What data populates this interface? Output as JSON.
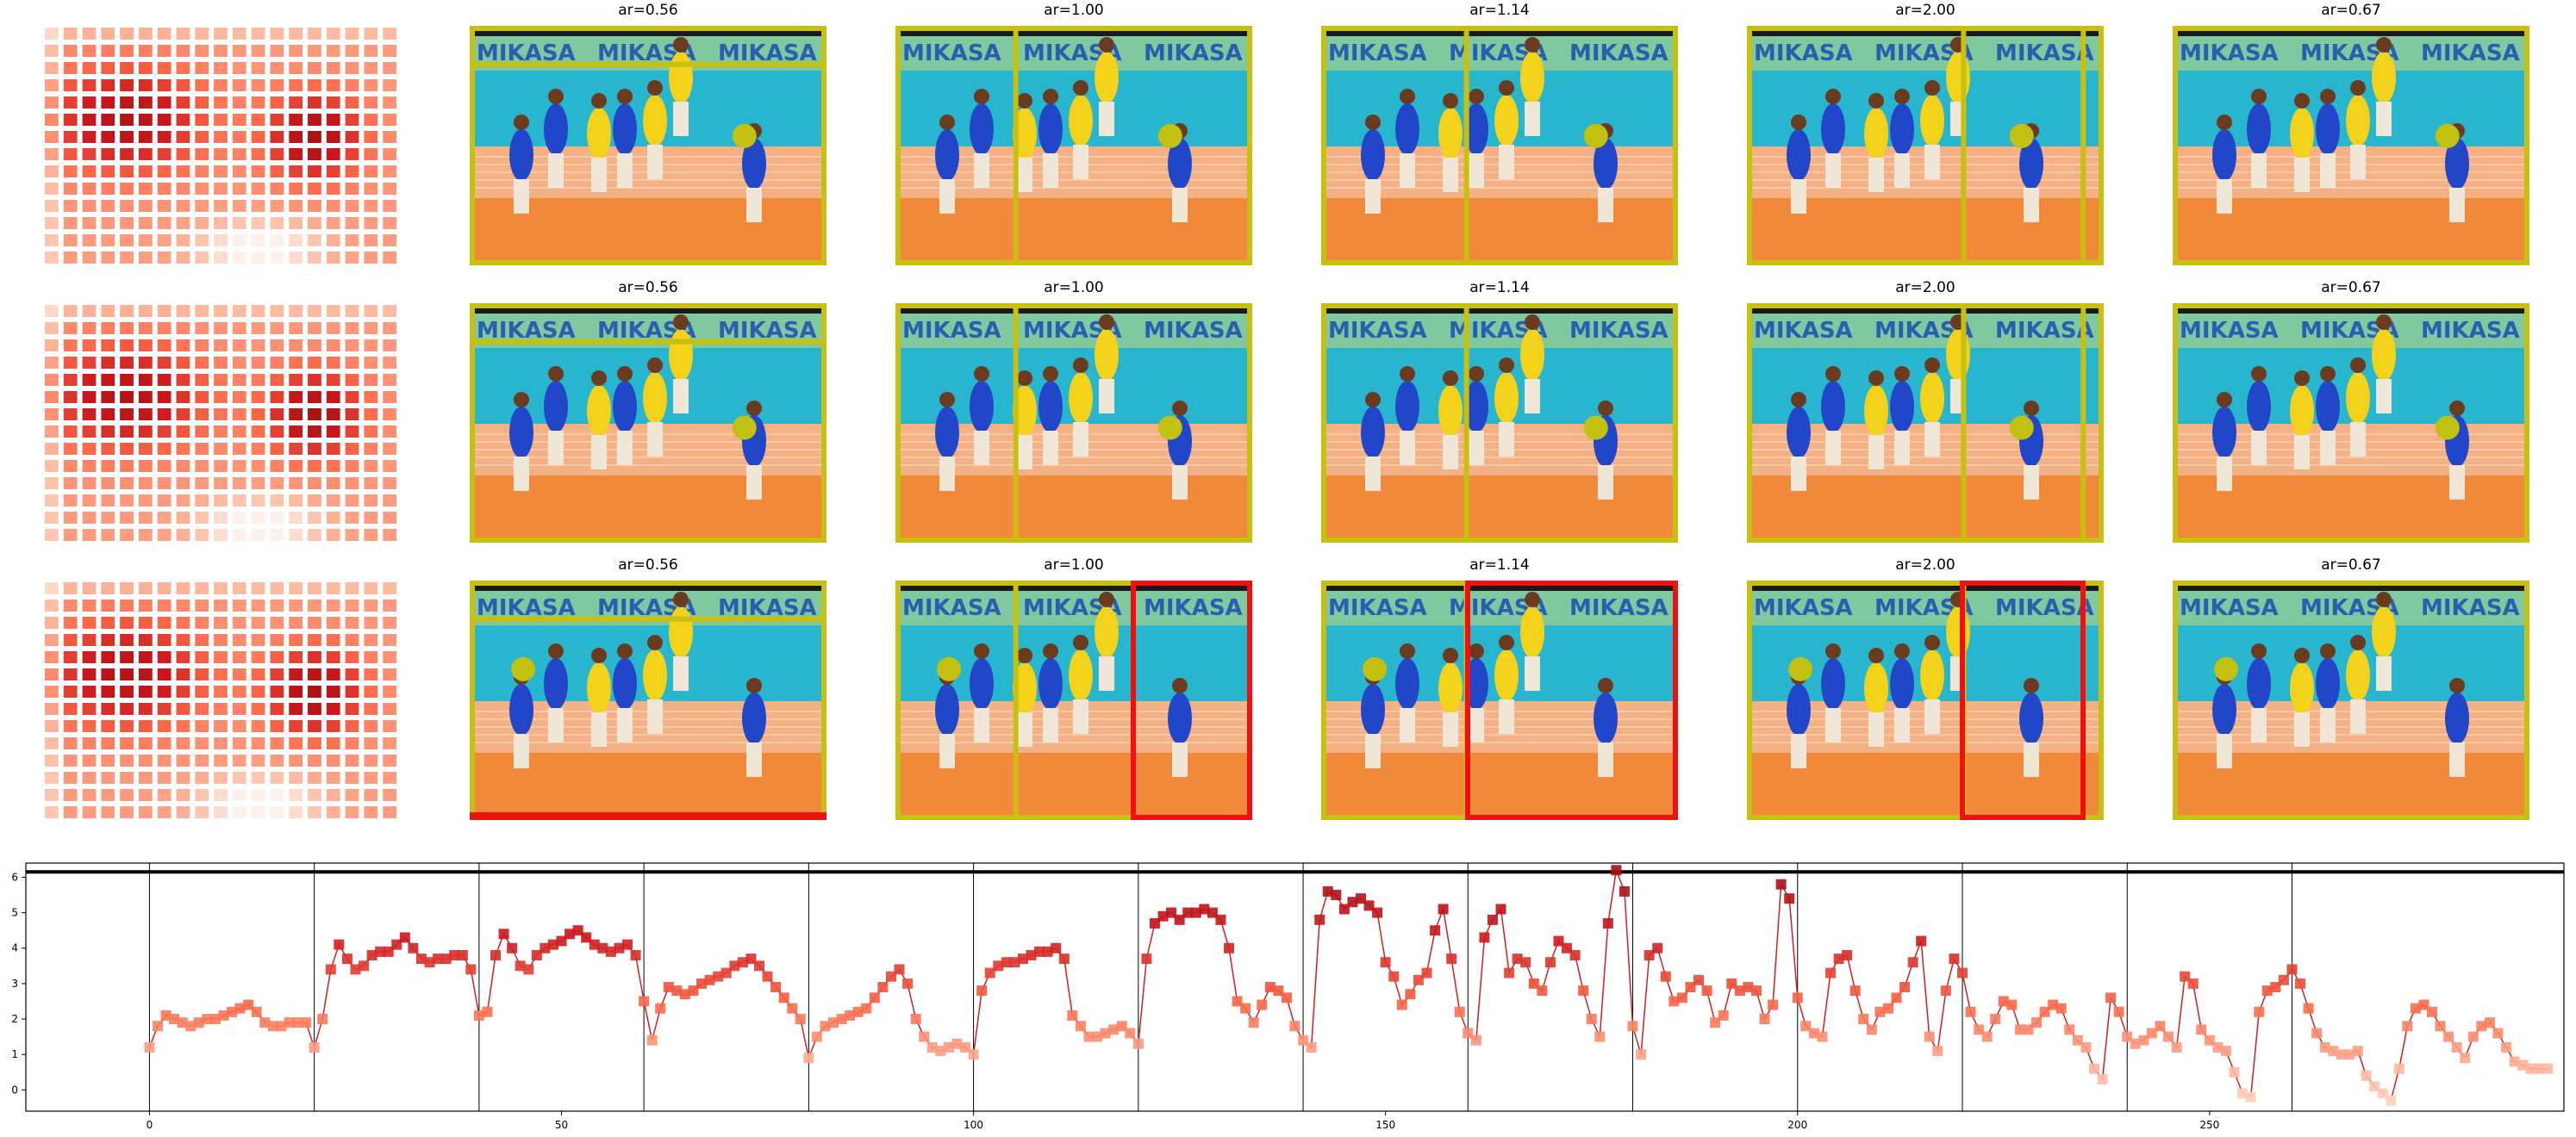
{
  "panel_titles": [
    "ar=0.56",
    "ar=1.00",
    "ar=1.14",
    "ar=2.00",
    "ar=0.67"
  ],
  "rows": [
    {
      "point_panel_index": [
        0,
        1,
        2,
        3,
        4
      ],
      "red_frames": []
    },
    {
      "point_panel_index": [
        0,
        1,
        2,
        3,
        4
      ],
      "red_frames": []
    },
    {
      "point_panel_index": [
        0,
        1,
        2,
        3,
        4
      ],
      "red_frames": [
        0,
        1,
        2,
        3
      ]
    }
  ],
  "banner_text": "MIKASA",
  "colors": {
    "frame_yellow": "#c8c010",
    "frame_red": "#ee1111",
    "point_yellow": "#c2c010",
    "line_red": "#cc2222",
    "marker_dark": "#a50f15",
    "marker_light": "#fcbba1"
  },
  "chart_data": {
    "type": "line",
    "x_start": 0,
    "xlim": [
      -15,
      293
    ],
    "ylim": [
      -0.6,
      6.4
    ],
    "xticks": [
      0,
      50,
      100,
      150,
      200,
      250
    ],
    "yticks": [
      0,
      1,
      2,
      3,
      4,
      5,
      6
    ],
    "group_separators": [
      0,
      20,
      40,
      60,
      80,
      100,
      120,
      140,
      160,
      180,
      200,
      220,
      240,
      260
    ],
    "hline": 6.15,
    "values": [
      1.2,
      1.8,
      2.1,
      2.0,
      1.9,
      1.8,
      1.9,
      2.0,
      2.0,
      2.1,
      2.2,
      2.3,
      2.4,
      2.2,
      1.9,
      1.8,
      1.8,
      1.9,
      1.9,
      1.9,
      1.2,
      2.0,
      3.4,
      4.1,
      3.7,
      3.4,
      3.5,
      3.8,
      3.9,
      3.9,
      4.1,
      4.3,
      4.0,
      3.7,
      3.6,
      3.7,
      3.7,
      3.8,
      3.8,
      3.4,
      2.1,
      2.2,
      3.8,
      4.4,
      4.0,
      3.5,
      3.4,
      3.8,
      4.0,
      4.1,
      4.2,
      4.4,
      4.5,
      4.3,
      4.1,
      4.0,
      3.9,
      4.0,
      4.1,
      3.8,
      2.5,
      1.4,
      2.3,
      2.9,
      2.8,
      2.7,
      2.8,
      3.0,
      3.1,
      3.2,
      3.3,
      3.5,
      3.6,
      3.7,
      3.5,
      3.2,
      2.9,
      2.6,
      2.3,
      2.0,
      0.9,
      1.5,
      1.8,
      1.9,
      2.0,
      2.1,
      2.2,
      2.3,
      2.6,
      2.9,
      3.2,
      3.4,
      3.0,
      2.0,
      1.5,
      1.2,
      1.1,
      1.2,
      1.3,
      1.2,
      1.0,
      2.8,
      3.3,
      3.5,
      3.6,
      3.6,
      3.7,
      3.8,
      3.9,
      3.9,
      4.0,
      3.7,
      2.1,
      1.8,
      1.5,
      1.5,
      1.6,
      1.7,
      1.8,
      1.6,
      1.3,
      3.7,
      4.7,
      4.9,
      5.0,
      4.8,
      5.0,
      5.0,
      5.1,
      5.0,
      4.8,
      4.0,
      2.5,
      2.3,
      1.9,
      2.4,
      2.9,
      2.8,
      2.6,
      1.8,
      1.4,
      1.2,
      4.8,
      5.6,
      5.5,
      5.1,
      5.3,
      5.4,
      5.2,
      5.0,
      3.6,
      3.2,
      2.4,
      2.7,
      3.1,
      3.3,
      4.5,
      5.1,
      3.7,
      2.2,
      1.6,
      1.4,
      4.3,
      4.8,
      5.1,
      3.3,
      3.7,
      3.6,
      3.0,
      2.8,
      3.6,
      4.2,
      4.0,
      3.8,
      2.8,
      2.0,
      1.5,
      4.7,
      6.2,
      5.6,
      1.8,
      1.0,
      3.8,
      4.0,
      3.2,
      2.5,
      2.6,
      2.9,
      3.1,
      2.8,
      1.9,
      2.1,
      3.0,
      2.8,
      2.9,
      2.8,
      2.0,
      2.4,
      5.8,
      5.4,
      2.6,
      1.8,
      1.6,
      1.5,
      3.3,
      3.7,
      3.8,
      2.8,
      2.0,
      1.7,
      2.2,
      2.3,
      2.6,
      2.9,
      3.6,
      4.2,
      1.5,
      1.1,
      2.8,
      3.7,
      3.3,
      2.2,
      1.7,
      1.5,
      2.0,
      2.5,
      2.4,
      1.7,
      1.7,
      1.9,
      2.2,
      2.4,
      2.3,
      1.7,
      1.4,
      1.2,
      0.6,
      0.3,
      2.6,
      2.2,
      1.5,
      1.3,
      1.4,
      1.6,
      1.8,
      1.5,
      1.2,
      3.2,
      3.0,
      1.7,
      1.4,
      1.2,
      1.1,
      0.5,
      -0.1,
      -0.2,
      2.2,
      2.8,
      2.9,
      3.1,
      3.4,
      3.0,
      2.3,
      1.6,
      1.2,
      1.1,
      1.0,
      1.0,
      1.1,
      0.4,
      0.1,
      -0.1,
      -0.3,
      0.6,
      1.8,
      2.3,
      2.4,
      2.2,
      1.8,
      1.5,
      1.2,
      0.9,
      1.5,
      1.8,
      1.9,
      1.6,
      1.2,
      0.8,
      0.7,
      0.6,
      0.6,
      0.6
    ]
  }
}
